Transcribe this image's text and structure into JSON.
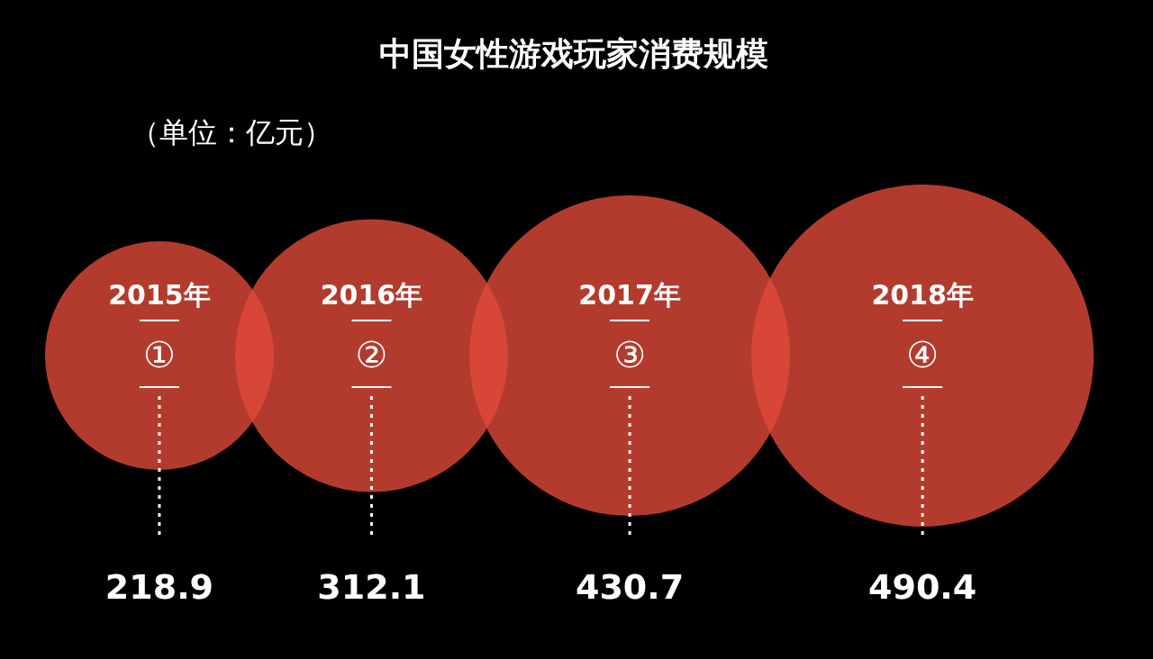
{
  "chart_data": {
    "type": "other",
    "title": "中国女性游戏玩家消费规模",
    "subtitle": "（单位：亿元）",
    "categories": [
      "2015年",
      "2016年",
      "2017年",
      "2018年"
    ],
    "values": [
      218.9,
      312.1,
      430.7,
      490.4
    ],
    "color": "#e04a3a",
    "data_labels": true,
    "annotations": [
      {
        "text": "①",
        "x": "2015年"
      },
      {
        "text": "②",
        "x": "2016年"
      },
      {
        "text": "③",
        "x": "2017年"
      },
      {
        "text": "④",
        "x": "2018年"
      }
    ]
  }
}
